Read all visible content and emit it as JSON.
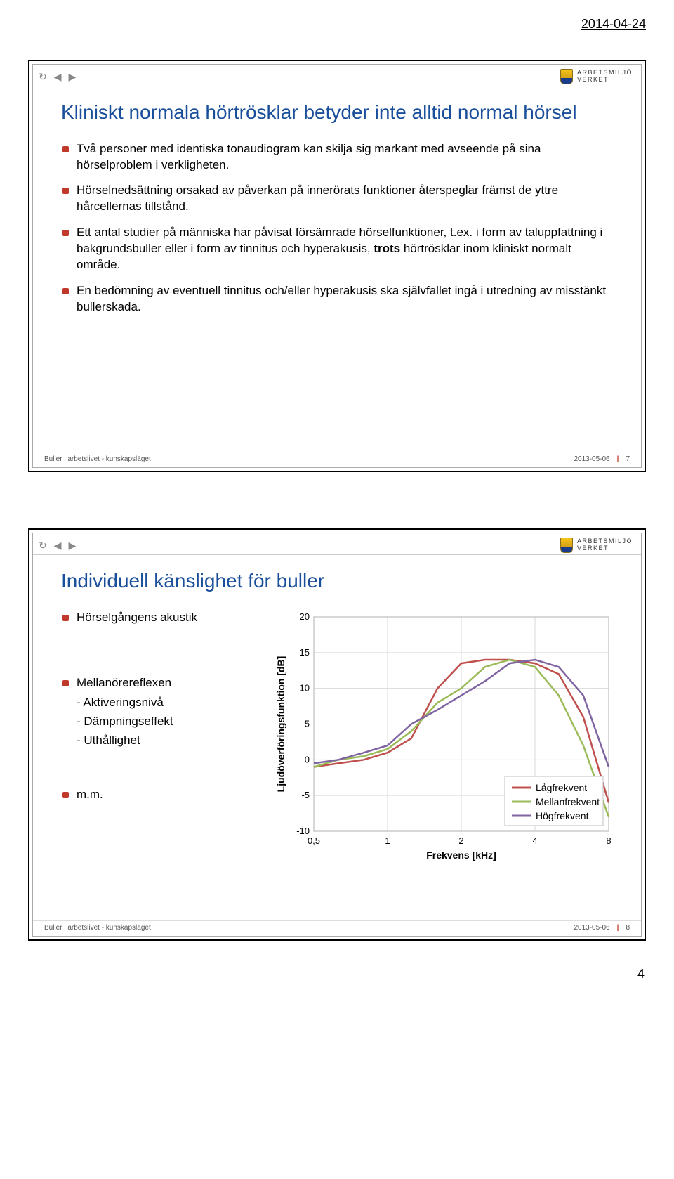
{
  "page": {
    "date": "2014-04-24",
    "page_number": "4"
  },
  "logo": {
    "line1": "ARBETSMILJÖ",
    "line2": "VERKET"
  },
  "nav": {
    "refresh": "↻",
    "prev": "◀",
    "next": "▶"
  },
  "slide1": {
    "title": "Kliniskt normala hörtrösklar betyder inte alltid normal hörsel",
    "bullets": [
      "Två personer med identiska tonaudiogram kan skilja sig markant med avseende på sina hörselproblem i verkligheten.",
      "Hörselnedsättning orsakad av påverkan på innerörats funktioner återspeglar främst de yttre hårcellernas tillstånd.",
      "Ett antal studier på människa har påvisat försämrade hörselfunktioner, t.ex. i form av taluppfattning i bakgrundsbuller eller i form av tinnitus och hyperakusis, trots hörtrösklar inom kliniskt normalt område.",
      "En bedömning av eventuell tinnitus och/eller hyperakusis ska självfallet ingå i utredning av misstänkt bullerskada."
    ],
    "footer": {
      "title": "Buller i arbetslivet - kunskapsläget",
      "date": "2013-05-06",
      "num": "7"
    }
  },
  "slide2": {
    "title": "Individuell känslighet för buller",
    "left_bullets": [
      {
        "label": "Hörselgångens akustik",
        "subs": []
      },
      {
        "label": "Mellanörereflexen",
        "subs": [
          "- Aktiveringsnivå",
          "- Dämpningseffekt",
          "- Uthållighet"
        ]
      },
      {
        "label": "m.m.",
        "subs": []
      }
    ],
    "chart": {
      "ylabel": "Ljudöverföringsfunktion [dB]",
      "xlabel": "Frekvens [kHz]",
      "ylim": [
        -10,
        20
      ],
      "ytick_step": 5,
      "xticks": [
        0.5,
        1,
        2,
        4,
        8
      ],
      "xtick_labels": [
        "0,5",
        "1",
        "2",
        "4",
        "8"
      ],
      "background": "#ffffff",
      "grid_color": "#d9d9d9",
      "axis_color": "#bfbfbf",
      "plot_bg": "#ffffff",
      "series": [
        {
          "name": "Lågfrekvent",
          "color": "#c0504d",
          "x": [
            0.5,
            0.63,
            0.8,
            1,
            1.25,
            1.6,
            2,
            2.5,
            3.15,
            4,
            5,
            6.3,
            8
          ],
          "y": [
            -1,
            -0.5,
            0,
            1,
            3,
            10,
            13.5,
            14,
            14,
            13.5,
            12,
            6,
            -6
          ]
        },
        {
          "name": "Mellanfrekvent",
          "color": "#9bbb59",
          "x": [
            0.5,
            0.63,
            0.8,
            1,
            1.25,
            1.6,
            2,
            2.5,
            3.15,
            4,
            5,
            6.3,
            8
          ],
          "y": [
            -1,
            0,
            0.5,
            1.5,
            4,
            8,
            10,
            13,
            14,
            13,
            9,
            2,
            -8
          ]
        },
        {
          "name": "Högfrekvent",
          "color": "#8064a2",
          "x": [
            0.5,
            0.63,
            0.8,
            1,
            1.25,
            1.6,
            2,
            2.5,
            3.15,
            4,
            5,
            6.3,
            8
          ],
          "y": [
            -0.5,
            0,
            1,
            2,
            5,
            7,
            9,
            11,
            13.5,
            14,
            13,
            9,
            -1
          ]
        }
      ],
      "legend_label_fontsize": 14
    },
    "footer": {
      "title": "Buller i arbetslivet - kunskapsläget",
      "date": "2013-05-06",
      "num": "8"
    }
  }
}
